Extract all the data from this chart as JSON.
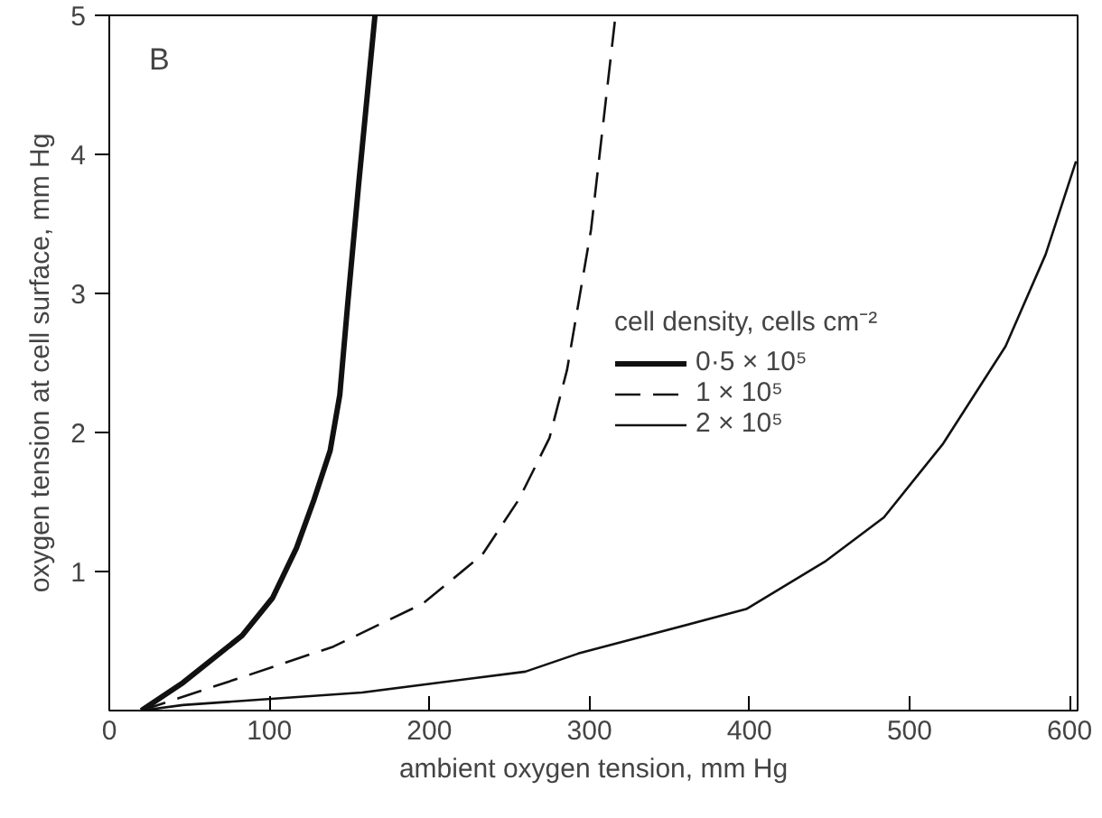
{
  "chart_data": {
    "type": "line",
    "xlabel": "ambient oxygen tension, mm Hg",
    "ylabel": "oxygen tension at cell surface, mm Hg",
    "legend_title": "cell density, cells cm⁻²",
    "legend": "right",
    "grid": false,
    "marker": "none",
    "annotations": [
      "B"
    ],
    "xlim": [
      0,
      605
    ],
    "ylim": [
      0,
      5
    ],
    "xticks": [
      0,
      100,
      200,
      300,
      400,
      500,
      600
    ],
    "yticks": [
      1,
      2,
      3,
      4,
      5
    ],
    "series": [
      {
        "name": "0·5 × 10⁵",
        "color": "#111111",
        "line_style": "solid",
        "x": [
          20,
          46,
          83,
          102,
          117,
          128,
          138,
          144,
          149,
          156,
          166
        ],
        "values": [
          0,
          0.2,
          0.54,
          0.81,
          1.17,
          1.52,
          1.87,
          2.27,
          2.93,
          3.81,
          5
        ]
      },
      {
        "name": "1 × 10⁵",
        "color": "#111111",
        "line_style": "dashed",
        "x": [
          20,
          83,
          140,
          196,
          233,
          256,
          275,
          286,
          301,
          316
        ],
        "values": [
          0,
          0.24,
          0.46,
          0.77,
          1.12,
          1.52,
          1.96,
          2.45,
          3.46,
          4.97
        ]
      },
      {
        "name": "2 × 10⁵",
        "color": "#111111",
        "line_style": "solid",
        "x": [
          20,
          46,
          158,
          260,
          293,
          398,
          447,
          484,
          521,
          560,
          585,
          604
        ],
        "values": [
          0,
          0.04,
          0.13,
          0.28,
          0.41,
          0.73,
          1.07,
          1.39,
          1.92,
          2.62,
          3.28,
          3.95
        ]
      }
    ]
  }
}
